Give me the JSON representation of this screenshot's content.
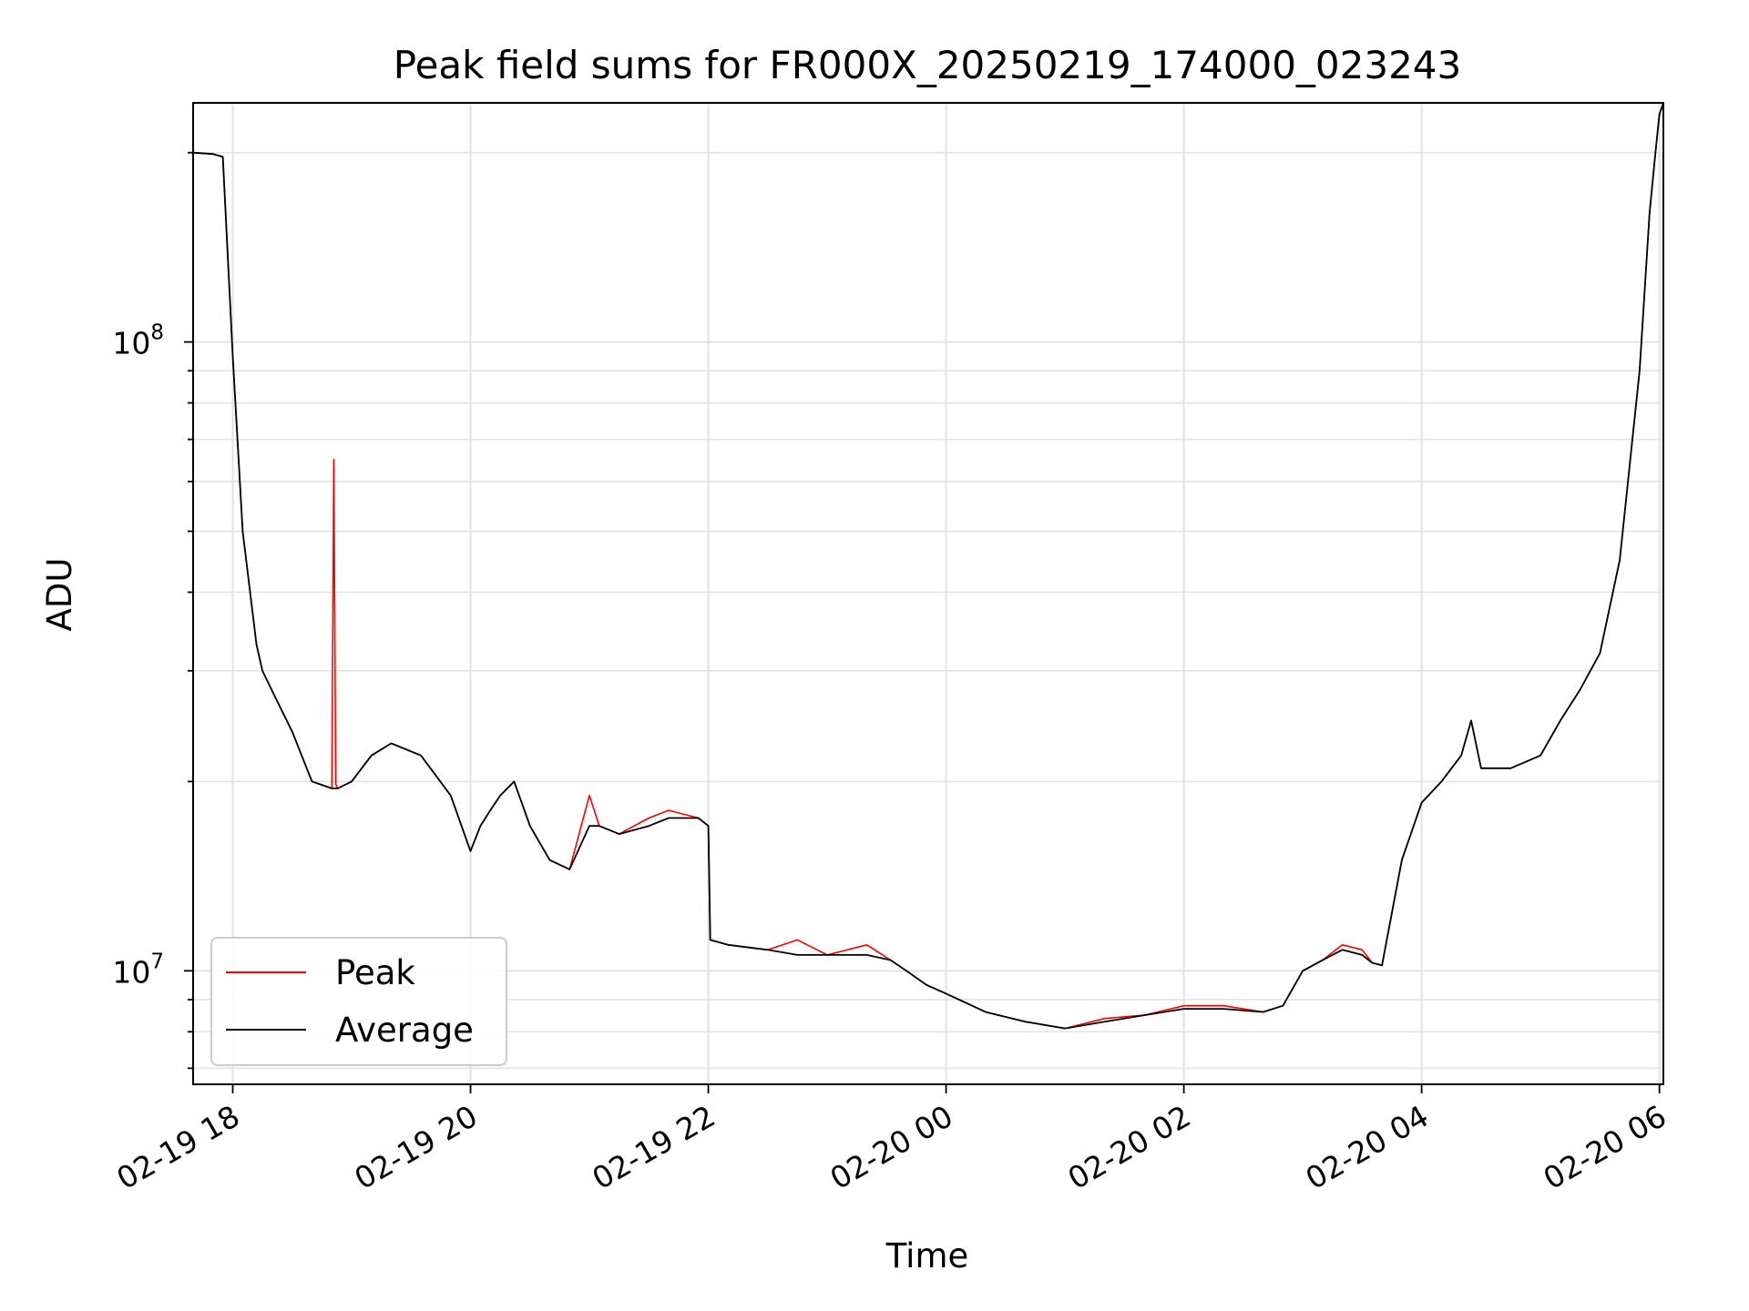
{
  "chart_data": {
    "type": "line",
    "title": "Peak field sums for FR000X_20250219_174000_023243",
    "xlabel": "Time",
    "ylabel": "ADU",
    "yscale": "log",
    "ylim": [
      6600000.0,
      240000000.0
    ],
    "xlim": [
      "2025-02-19 17:40",
      "2025-02-20 06:02"
    ],
    "x_ticks": [
      {
        "value": "2025-02-19 18:00",
        "label": "02-19 18"
      },
      {
        "value": "2025-02-19 20:00",
        "label": "02-19 20"
      },
      {
        "value": "2025-02-19 22:00",
        "label": "02-19 22"
      },
      {
        "value": "2025-02-20 00:00",
        "label": "02-20 00"
      },
      {
        "value": "2025-02-20 02:00",
        "label": "02-20 02"
      },
      {
        "value": "2025-02-20 04:00",
        "label": "02-20 04"
      },
      {
        "value": "2025-02-20 06:00",
        "label": "02-20 06"
      }
    ],
    "y_ticks": [
      {
        "value": 10000000,
        "base": "10",
        "exp": "7"
      },
      {
        "value": 100000000,
        "base": "10",
        "exp": "8"
      }
    ],
    "grid": true,
    "legend": "lower-left",
    "series": [
      {
        "name": "Peak",
        "color": "#ff0000",
        "x": [
          "2025-02-19 17:40",
          "2025-02-19 17:50",
          "2025-02-19 17:55",
          "2025-02-19 18:00",
          "2025-02-19 18:05",
          "2025-02-19 18:12",
          "2025-02-19 18:15",
          "2025-02-19 18:22",
          "2025-02-19 18:30",
          "2025-02-19 18:40",
          "2025-02-19 18:50",
          "2025-02-19 18:51",
          "2025-02-19 18:52",
          "2025-02-19 18:53",
          "2025-02-19 19:00",
          "2025-02-19 19:10",
          "2025-02-19 19:20",
          "2025-02-19 19:35",
          "2025-02-19 19:50",
          "2025-02-19 20:00",
          "2025-02-19 20:05",
          "2025-02-19 20:10",
          "2025-02-19 20:15",
          "2025-02-19 20:22",
          "2025-02-19 20:30",
          "2025-02-19 20:40",
          "2025-02-19 20:50",
          "2025-02-19 21:00",
          "2025-02-19 21:05",
          "2025-02-19 21:15",
          "2025-02-19 21:30",
          "2025-02-19 21:40",
          "2025-02-19 21:55",
          "2025-02-19 22:00",
          "2025-02-19 22:01",
          "2025-02-19 22:10",
          "2025-02-19 22:30",
          "2025-02-19 22:45",
          "2025-02-19 23:00",
          "2025-02-19 23:20",
          "2025-02-19 23:32",
          "2025-02-19 23:40",
          "2025-02-19 23:50",
          "2025-02-20 00:00",
          "2025-02-20 00:20",
          "2025-02-20 00:40",
          "2025-02-20 01:00",
          "2025-02-20 01:20",
          "2025-02-20 01:40",
          "2025-02-20 02:00",
          "2025-02-20 02:20",
          "2025-02-20 02:40",
          "2025-02-20 02:50",
          "2025-02-20 03:00",
          "2025-02-20 03:10",
          "2025-02-20 03:20",
          "2025-02-20 03:30",
          "2025-02-20 03:35",
          "2025-02-20 03:40",
          "2025-02-20 03:50",
          "2025-02-20 04:00",
          "2025-02-20 04:10",
          "2025-02-20 04:20",
          "2025-02-20 04:25",
          "2025-02-20 04:30",
          "2025-02-20 04:45",
          "2025-02-20 05:00",
          "2025-02-20 05:10",
          "2025-02-20 05:20",
          "2025-02-20 05:30",
          "2025-02-20 05:40",
          "2025-02-20 05:50",
          "2025-02-20 05:55",
          "2025-02-20 05:58",
          "2025-02-20 06:00",
          "2025-02-20 06:02"
        ],
        "y": [
          200000000,
          199000000,
          197000000,
          95000000,
          50000000,
          33000000,
          30000000,
          27000000,
          24000000,
          20000000,
          19500000,
          65000000,
          19800000,
          19500000,
          20000000,
          22000000,
          23000000,
          22000000,
          19000000,
          15500000,
          17000000,
          18000000,
          19000000,
          20000000,
          17000000,
          15000000,
          14500000,
          19000000,
          17000000,
          16500000,
          17500000,
          18000000,
          17500000,
          17000000,
          11200000,
          11000000,
          10800000,
          11200000,
          10600000,
          11000000,
          10400000,
          10000000,
          9500000,
          9200000,
          8600000,
          8300000,
          8100000,
          8400000,
          8500000,
          8800000,
          8800000,
          8600000,
          8800000,
          10000000,
          10400000,
          11000000,
          10800000,
          10300000,
          10200000,
          15000000,
          18500000,
          20000000,
          22000000,
          25000000,
          21000000,
          21000000,
          22000000,
          25000000,
          28000000,
          32000000,
          45000000,
          90000000,
          160000000,
          200000000,
          230000000,
          240000000
        ]
      },
      {
        "name": "Average",
        "color": "#000000",
        "x": [
          "2025-02-19 17:40",
          "2025-02-19 17:50",
          "2025-02-19 17:55",
          "2025-02-19 18:00",
          "2025-02-19 18:05",
          "2025-02-19 18:12",
          "2025-02-19 18:15",
          "2025-02-19 18:22",
          "2025-02-19 18:30",
          "2025-02-19 18:40",
          "2025-02-19 18:50",
          "2025-02-19 18:53",
          "2025-02-19 19:00",
          "2025-02-19 19:10",
          "2025-02-19 19:20",
          "2025-02-19 19:35",
          "2025-02-19 19:50",
          "2025-02-19 20:00",
          "2025-02-19 20:05",
          "2025-02-19 20:10",
          "2025-02-19 20:15",
          "2025-02-19 20:22",
          "2025-02-19 20:30",
          "2025-02-19 20:40",
          "2025-02-19 20:50",
          "2025-02-19 21:00",
          "2025-02-19 21:05",
          "2025-02-19 21:15",
          "2025-02-19 21:30",
          "2025-02-19 21:40",
          "2025-02-19 21:55",
          "2025-02-19 22:00",
          "2025-02-19 22:01",
          "2025-02-19 22:10",
          "2025-02-19 22:30",
          "2025-02-19 22:45",
          "2025-02-19 23:00",
          "2025-02-19 23:20",
          "2025-02-19 23:32",
          "2025-02-19 23:40",
          "2025-02-19 23:50",
          "2025-02-20 00:00",
          "2025-02-20 00:20",
          "2025-02-20 00:40",
          "2025-02-20 01:00",
          "2025-02-20 01:20",
          "2025-02-20 01:40",
          "2025-02-20 02:00",
          "2025-02-20 02:20",
          "2025-02-20 02:40",
          "2025-02-20 02:50",
          "2025-02-20 03:00",
          "2025-02-20 03:10",
          "2025-02-20 03:20",
          "2025-02-20 03:30",
          "2025-02-20 03:35",
          "2025-02-20 03:40",
          "2025-02-20 03:50",
          "2025-02-20 04:00",
          "2025-02-20 04:10",
          "2025-02-20 04:20",
          "2025-02-20 04:25",
          "2025-02-20 04:30",
          "2025-02-20 04:45",
          "2025-02-20 05:00",
          "2025-02-20 05:10",
          "2025-02-20 05:20",
          "2025-02-20 05:30",
          "2025-02-20 05:40",
          "2025-02-20 05:50",
          "2025-02-20 05:55",
          "2025-02-20 05:58",
          "2025-02-20 06:00",
          "2025-02-20 06:02"
        ],
        "y": [
          200000000,
          199000000,
          197000000,
          95000000,
          50000000,
          33000000,
          30000000,
          27000000,
          24000000,
          20000000,
          19500000,
          19500000,
          20000000,
          22000000,
          23000000,
          22000000,
          19000000,
          15500000,
          17000000,
          18000000,
          19000000,
          20000000,
          17000000,
          15000000,
          14500000,
          17000000,
          17000000,
          16500000,
          17000000,
          17500000,
          17500000,
          17000000,
          11200000,
          11000000,
          10800000,
          10600000,
          10600000,
          10600000,
          10400000,
          10000000,
          9500000,
          9200000,
          8600000,
          8300000,
          8100000,
          8300000,
          8500000,
          8700000,
          8700000,
          8600000,
          8800000,
          10000000,
          10400000,
          10800000,
          10600000,
          10300000,
          10200000,
          15000000,
          18500000,
          20000000,
          22000000,
          25000000,
          21000000,
          21000000,
          22000000,
          25000000,
          28000000,
          32000000,
          45000000,
          90000000,
          160000000,
          200000000,
          230000000,
          240000000
        ]
      }
    ]
  }
}
